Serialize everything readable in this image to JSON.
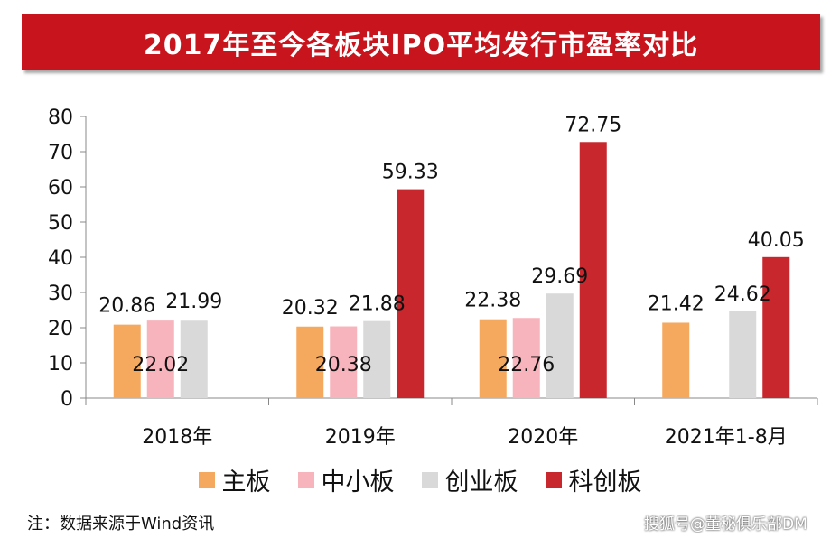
{
  "title": "2017年至今各板块IPO平均发行市盈率对比",
  "source_note": "注：数据来源于Wind资讯",
  "watermark": "搜狐号@董秘俱乐部DM",
  "colors": {
    "title_bg": "#c8141d",
    "series": [
      "#f5a95e",
      "#f8b4bc",
      "#d9d9d9",
      "#c8272d"
    ]
  },
  "chart_data": {
    "type": "bar",
    "categories": [
      "2018年",
      "2019年",
      "2020年",
      "2021年1-8月"
    ],
    "series": [
      {
        "name": "主板",
        "values": [
          20.86,
          20.32,
          22.38,
          21.42
        ]
      },
      {
        "name": "中小板",
        "values": [
          22.02,
          20.38,
          22.76,
          null
        ]
      },
      {
        "name": "创业板",
        "values": [
          21.99,
          21.88,
          29.69,
          24.62
        ]
      },
      {
        "name": "科创板",
        "values": [
          null,
          59.33,
          72.75,
          40.05
        ]
      }
    ],
    "ylim": [
      0,
      80
    ],
    "yticks": [
      "0",
      "10",
      "20",
      "30",
      "40",
      "50",
      "60",
      "70",
      "80"
    ],
    "legend_position": "bottom",
    "grid": false
  }
}
